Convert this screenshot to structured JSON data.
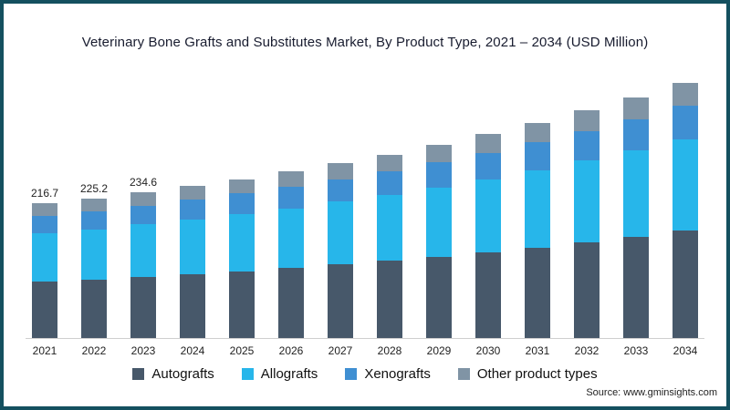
{
  "chart_data": {
    "type": "bar",
    "stacked": true,
    "title": "Veterinary Bone Grafts and Substitutes Market, By Product Type, 2021 – 2034 (USD Million)",
    "categories": [
      "2021",
      "2022",
      "2023",
      "2024",
      "2025",
      "2026",
      "2027",
      "2028",
      "2029",
      "2030",
      "2031",
      "2032",
      "2033",
      "2034"
    ],
    "series": [
      {
        "name": "Autografts",
        "color": "#47586a",
        "values": [
          91.0,
          94.5,
          98.5,
          102.9,
          107.5,
          112.6,
          118.3,
          124.3,
          130.9,
          137.9,
          145.6,
          154.0,
          163.0,
          172.7
        ]
      },
      {
        "name": "Allografts",
        "color": "#27b6ea",
        "values": [
          78.0,
          81.1,
          84.5,
          88.1,
          92.2,
          96.6,
          101.3,
          106.5,
          112.1,
          118.2,
          124.8,
          131.9,
          139.7,
          148.0
        ]
      },
      {
        "name": "Xenografts",
        "color": "#3f8fd2",
        "values": [
          28.2,
          29.3,
          30.5,
          31.8,
          33.3,
          34.9,
          36.6,
          38.5,
          40.5,
          42.7,
          45.1,
          47.6,
          50.4,
          53.5
        ]
      },
      {
        "name": "Other product types",
        "color": "#8094a5",
        "values": [
          19.5,
          20.3,
          21.1,
          22.0,
          23.0,
          24.1,
          25.3,
          26.6,
          28.0,
          29.6,
          31.2,
          33.0,
          34.9,
          37.0
        ]
      }
    ],
    "totals": [
      216.7,
      225.2,
      234.6,
      244.8,
      256.0,
      268.2,
      281.5,
      295.9,
      311.5,
      328.4,
      346.7,
      366.5,
      388.0,
      411.2
    ],
    "bar_labels": [
      "216.7",
      "225.2",
      "234.6",
      "",
      "",
      "",
      "",
      "",
      "",
      "",
      "",
      "",
      "",
      ""
    ],
    "ylim": [
      0,
      420
    ],
    "grid": false,
    "legend_position": "bottom",
    "source": "Source: www.gminsights.com"
  }
}
